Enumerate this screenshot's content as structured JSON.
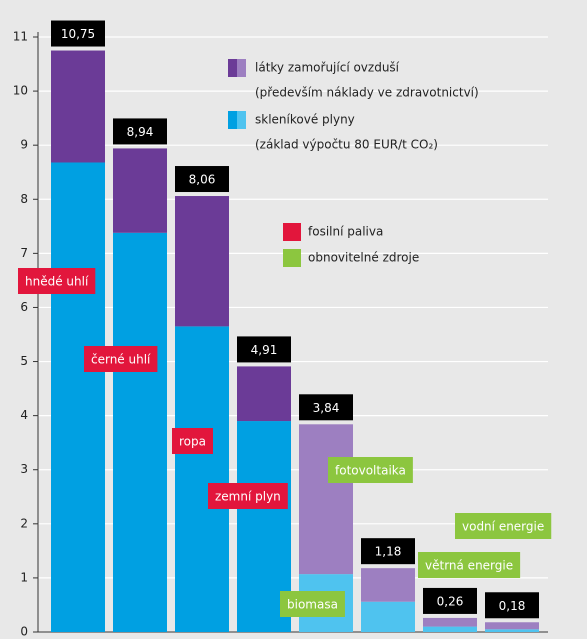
{
  "chart_data": {
    "type": "stacked-bar",
    "categories": [
      "hnědé uhlí",
      "černé uhlí",
      "ropa",
      "zemní plyn",
      "biomasa",
      "fotovoltaika",
      "větrná energie",
      "vodní energie"
    ],
    "category_group": [
      0,
      0,
      0,
      0,
      1,
      1,
      1,
      1
    ],
    "groups": [
      {
        "name": "fosilní paliva",
        "color": "#e2163c"
      },
      {
        "name": "obnovitelné zdroje",
        "color": "#8cc63f"
      }
    ],
    "series": [
      {
        "name": "skleníkové plyny",
        "note": "(základ výpočtu 80 EUR/t CO₂)",
        "color": "#00a0e2",
        "renewable_color": "#4fc3ef",
        "values": [
          8.68,
          7.38,
          5.65,
          3.9,
          1.07,
          0.56,
          0.1,
          0.05
        ]
      },
      {
        "name": "látky zamořující ovzduší",
        "note": "(především náklady ve zdravotnictví)",
        "color": "#6b3b97",
        "renewable_color": "#9d7fc1",
        "values": [
          2.07,
          1.56,
          2.41,
          1.01,
          2.77,
          0.62,
          0.16,
          0.13
        ]
      }
    ],
    "totals": [
      10.75,
      8.94,
      8.06,
      4.91,
      3.84,
      1.18,
      0.26,
      0.18
    ],
    "total_labels": [
      "10,75",
      "8,94",
      "8,06",
      "4,91",
      "3,84",
      "1,18",
      "0,26",
      "0,18"
    ],
    "ylim": [
      0,
      11
    ],
    "yticks": [
      0,
      1,
      2,
      3,
      4,
      5,
      6,
      7,
      8,
      9,
      10,
      11
    ],
    "grid": true
  }
}
